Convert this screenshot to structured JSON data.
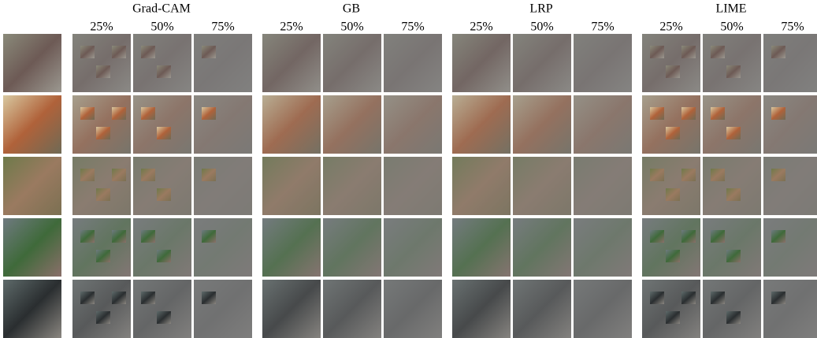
{
  "methods": [
    {
      "name": "Grad-CAM",
      "levels": [
        "25%",
        "50%",
        "75%"
      ]
    },
    {
      "name": "GB",
      "levels": [
        "25%",
        "50%",
        "75%"
      ]
    },
    {
      "name": "LRP",
      "levels": [
        "25%",
        "50%",
        "75%"
      ]
    },
    {
      "name": "LIME",
      "levels": [
        "25%",
        "50%",
        "75%"
      ]
    }
  ]
}
